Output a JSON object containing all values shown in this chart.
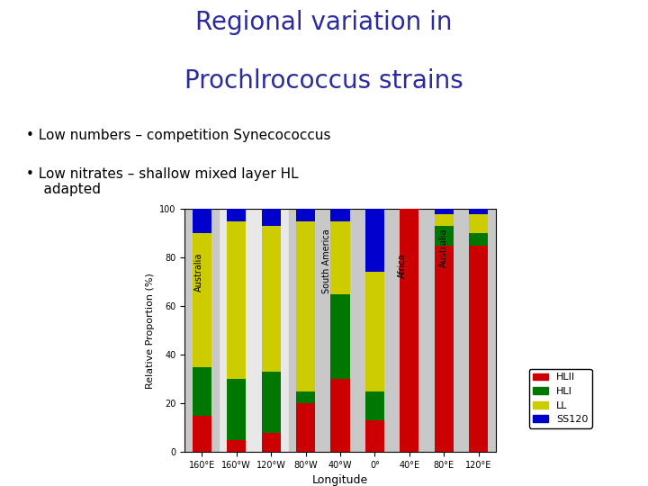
{
  "title_line1": "Regional variation in",
  "title_line2": "Prochlrococcus strains",
  "title_color": "#2b2b9e",
  "bullet1": "Low numbers – competition Synecococcus",
  "bullet2": "Low nitrates – shallow mixed layer HL\n    adapted",
  "xlabel": "Longitude",
  "ylabel": "Relative Proportion (%)",
  "ylim": [
    0,
    100
  ],
  "yticks": [
    0,
    20,
    40,
    60,
    80,
    100
  ],
  "bar_width": 0.55,
  "bar_labels": [
    "160°E",
    "160°W",
    "120°W",
    "80°W",
    "40°W",
    "0°",
    "40°E",
    "80°E",
    "120°E"
  ],
  "HLII": [
    15,
    5,
    8,
    20,
    30,
    13,
    100,
    85,
    85
  ],
  "HLI": [
    20,
    25,
    25,
    5,
    35,
    12,
    0,
    8,
    5
  ],
  "LL": [
    55,
    65,
    60,
    70,
    30,
    49,
    0,
    5,
    8
  ],
  "SS120": [
    10,
    5,
    7,
    5,
    5,
    26,
    0,
    2,
    2
  ],
  "colors": {
    "HLII": "#cc0000",
    "HLI": "#007700",
    "LL": "#cccc00",
    "SS120": "#0000cc"
  },
  "shade_color": "#c8c8c8",
  "background_color": "#ffffff",
  "plot_bg_color": "#e8e8e8"
}
